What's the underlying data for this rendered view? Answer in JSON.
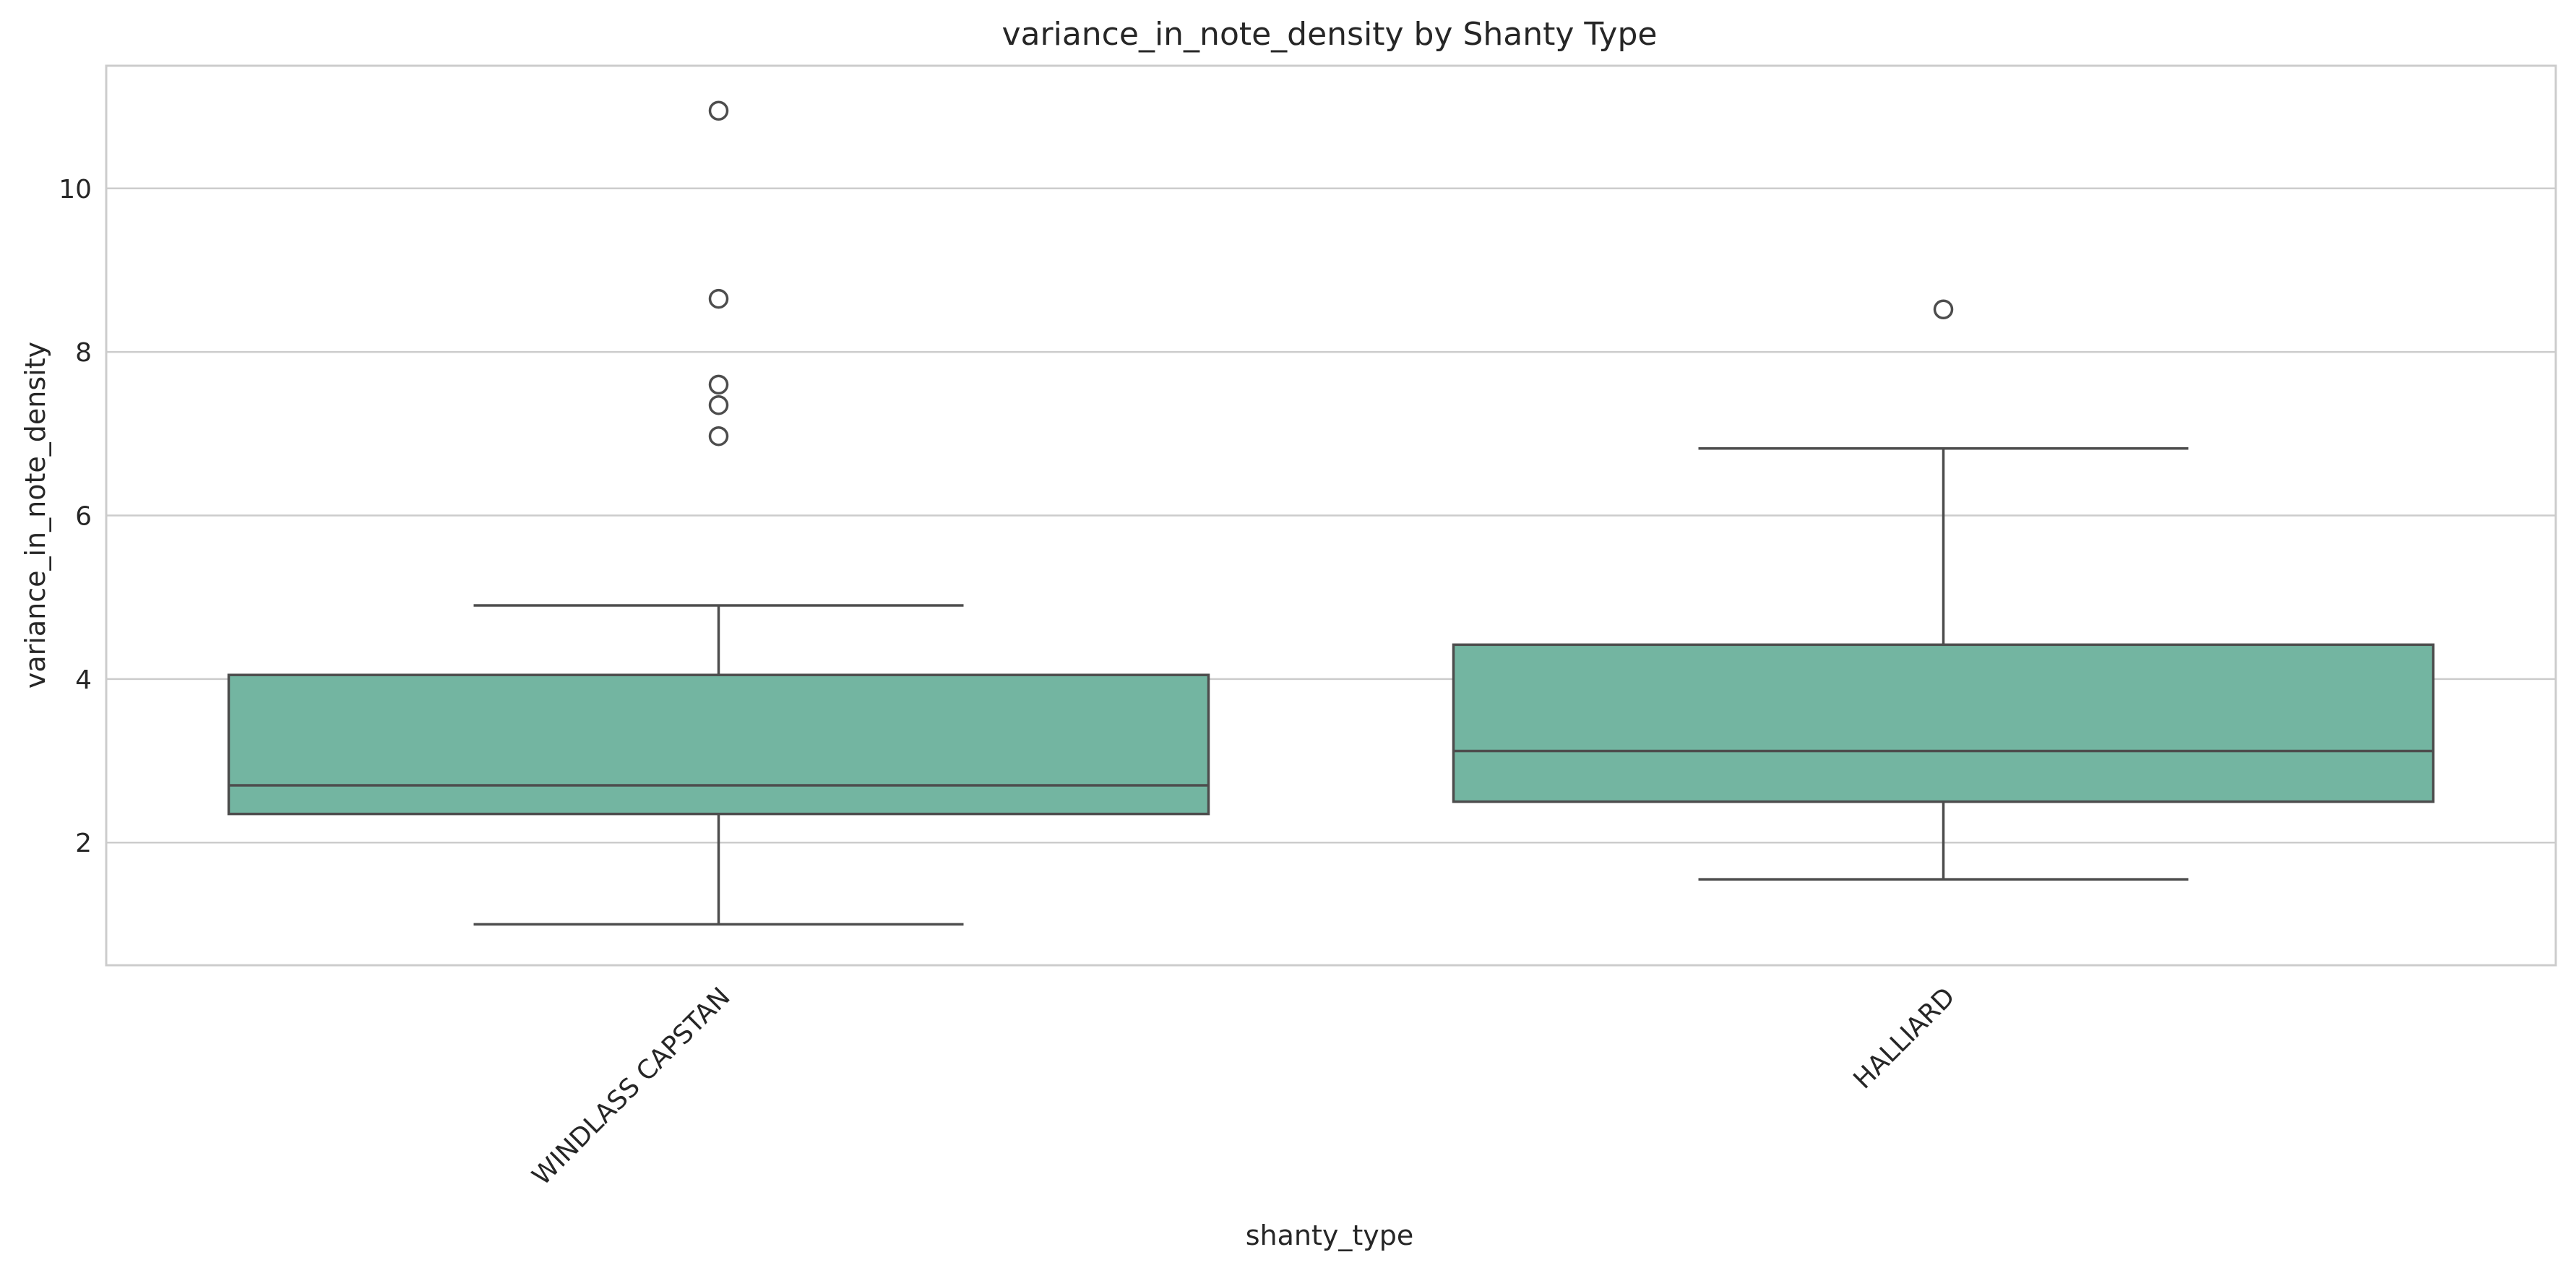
{
  "chart_data": {
    "type": "box",
    "title": "variance_in_note_density by Shanty Type",
    "xlabel": "shanty_type",
    "ylabel": "variance_in_note_density",
    "ylim": [
      0.5,
      11.5
    ],
    "yticks": [
      2,
      4,
      6,
      8,
      10
    ],
    "ytick_labels": [
      "2",
      "4",
      "6",
      "8",
      "10"
    ],
    "grid": "y",
    "box_color": "#73b5a1",
    "line_color": "#4d4d4d",
    "categories": [
      "WINDLASS CAPSTAN",
      "HALLIARD"
    ],
    "boxes": [
      {
        "category": "WINDLASS CAPSTAN",
        "whisker_low": 1.0,
        "q1": 2.35,
        "median": 2.7,
        "q3": 4.05,
        "whisker_high": 4.9,
        "outliers": [
          10.95,
          8.65,
          7.6,
          7.35,
          6.97
        ]
      },
      {
        "category": "HALLIARD",
        "whisker_low": 1.55,
        "q1": 2.5,
        "median": 3.12,
        "q3": 4.42,
        "whisker_high": 6.82,
        "outliers": [
          8.52
        ]
      }
    ]
  }
}
